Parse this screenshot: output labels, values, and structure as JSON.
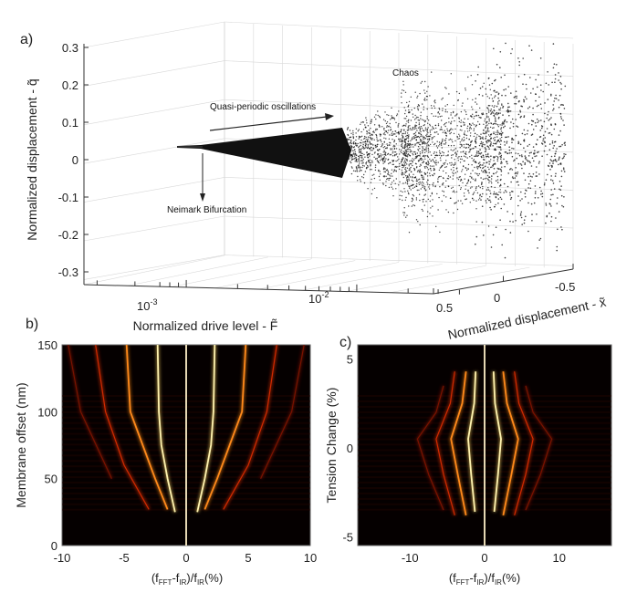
{
  "chart_data": [
    {
      "panel": "a)",
      "type": "scatter",
      "projection": "3d",
      "xlabel": "Normalized drive level - F̃",
      "xscale": "log",
      "xticks": [
        "10",
        "10"
      ],
      "xtick_exponents": [
        "-3",
        "-2"
      ],
      "ylabel": "Normalized displacement - x̃",
      "yticks": [
        "0.5",
        "0",
        "-0.5"
      ],
      "zlabel": "Normalized displacement - q̃",
      "zticks": [
        "0.3",
        "0.2",
        "0.1",
        "0",
        "-0.1",
        "-0.2",
        "-0.3"
      ],
      "zlim": [
        -0.3,
        0.3
      ],
      "grid": true,
      "annotations": [
        {
          "text": "Chaos"
        },
        {
          "text": "Quasi-periodic oscillations"
        },
        {
          "text": "Neimark Bifurcation"
        }
      ],
      "regimes": [
        {
          "name": "periodic",
          "drive_range": [
            0.0008,
            0.0014
          ],
          "q_amplitude": 0.0
        },
        {
          "name": "quasi-periodic",
          "drive_range": [
            0.0014,
            0.011
          ],
          "q_amplitude": [
            0.01,
            0.08
          ]
        },
        {
          "name": "chaos",
          "drive_range": [
            0.011,
            0.05
          ],
          "q_amplitude": [
            0.1,
            0.3
          ]
        }
      ],
      "color": "#111111"
    },
    {
      "panel": "b)",
      "type": "heatmap",
      "xlabel_main": "(f",
      "xlabel_parts": [
        "FFT",
        "-f",
        "IR",
        ")/f",
        "IR",
        "(%)"
      ],
      "ylabel": "Membrane offset (nm)",
      "xlim": [
        -10,
        10
      ],
      "ylim": [
        0,
        150
      ],
      "xticks": [
        "-10",
        "-5",
        "0",
        "5",
        "10"
      ],
      "yticks": [
        "0",
        "50",
        "100",
        "150"
      ],
      "center_line": {
        "x": 0,
        "y_range": [
          0,
          150
        ]
      },
      "branches": [
        {
          "intensity": 1.0,
          "points": [
            [
              0.9,
              25
            ],
            [
              1.5,
              50
            ],
            [
              2.0,
              75
            ],
            [
              2.2,
              100
            ],
            [
              2.3,
              150
            ]
          ]
        },
        {
          "intensity": 0.8,
          "points": [
            [
              1.5,
              27
            ],
            [
              2.5,
              50
            ],
            [
              3.5,
              75
            ],
            [
              4.5,
              100
            ],
            [
              4.8,
              150
            ]
          ]
        },
        {
          "intensity": 0.45,
          "points": [
            [
              3.0,
              27
            ],
            [
              5.0,
              60
            ],
            [
              6.5,
              100
            ],
            [
              7.3,
              150
            ]
          ]
        },
        {
          "intensity": 0.25,
          "points": [
            [
              6.0,
              50
            ],
            [
              8.5,
              100
            ],
            [
              9.5,
              150
            ]
          ]
        }
      ],
      "symmetric": true
    },
    {
      "panel": "c)",
      "type": "heatmap",
      "xlabel_main": "(f",
      "xlabel_parts": [
        "FFT",
        "-f",
        "IR",
        ")/f",
        "IR",
        "(%)"
      ],
      "ylabel": "Tension Change (%)",
      "xlim": [
        -17,
        17
      ],
      "ylim": [
        -5.5,
        5.8
      ],
      "xticks": [
        "-10",
        "0",
        "10"
      ],
      "yticks": [
        "-5",
        "0",
        "5"
      ],
      "center_line": {
        "x": 0,
        "y_range": [
          -5.5,
          5.8
        ]
      },
      "branches": [
        {
          "intensity": 1.0,
          "points": [
            [
              1.2,
              4.3
            ],
            [
              1.4,
              2.5
            ],
            [
              2.2,
              0.5
            ],
            [
              1.8,
              -1.5
            ],
            [
              1.3,
              -3.6
            ]
          ]
        },
        {
          "intensity": 0.85,
          "points": [
            [
              2.5,
              4.3
            ],
            [
              3.0,
              2.5
            ],
            [
              4.5,
              0.5
            ],
            [
              3.6,
              -1.5
            ],
            [
              2.5,
              -3.8
            ]
          ]
        },
        {
          "intensity": 0.5,
          "points": [
            [
              4.0,
              4.3
            ],
            [
              4.6,
              2.5
            ],
            [
              6.5,
              0.5
            ],
            [
              5.5,
              -1.5
            ],
            [
              4.0,
              -3.8
            ]
          ]
        },
        {
          "intensity": 0.25,
          "points": [
            [
              5.5,
              3.5
            ],
            [
              6.5,
              2.0
            ],
            [
              9.0,
              0.5
            ],
            [
              7.5,
              -1.5
            ],
            [
              5.5,
              -3.5
            ]
          ]
        }
      ],
      "symmetric": true
    }
  ]
}
